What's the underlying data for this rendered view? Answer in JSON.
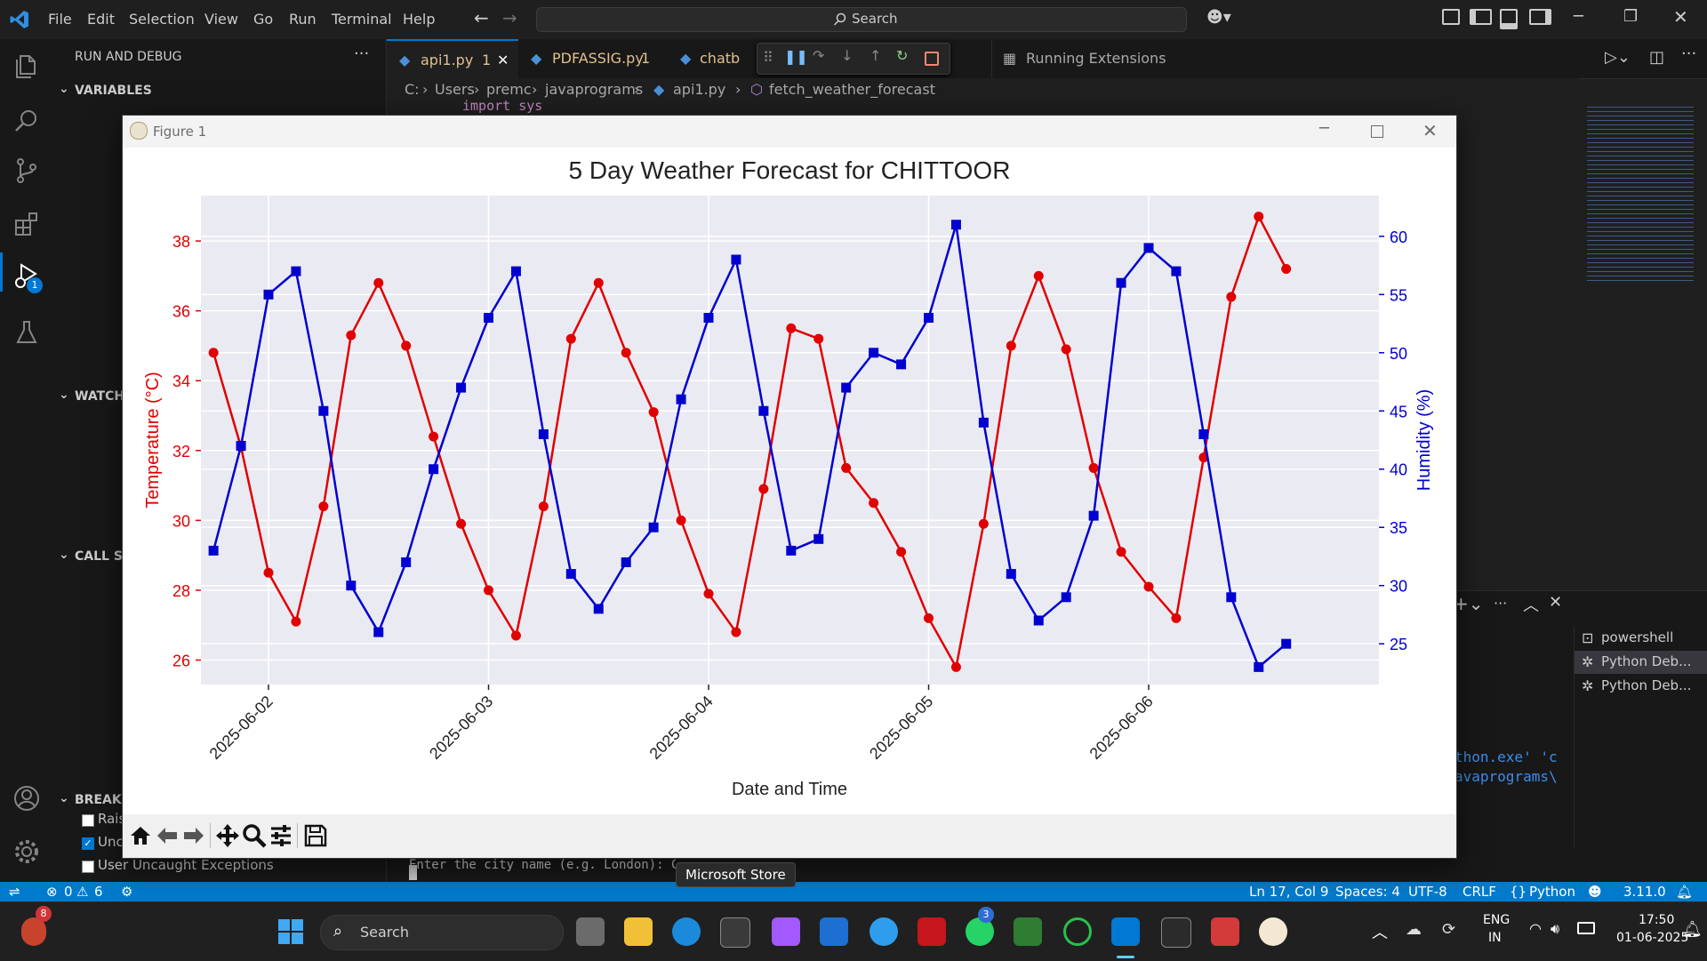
{
  "menu": [
    "File",
    "Edit",
    "Selection",
    "View",
    "Go",
    "Run",
    "Terminal",
    "Help"
  ],
  "search_label": "Search",
  "sidebar": {
    "title": "RUN AND DEBUG",
    "variables": "VARIABLES",
    "watch": "WATCH",
    "call_stack": "CALL ST",
    "breakpoints": "BREAKP",
    "bp_items": [
      "Rais",
      "Unc",
      "User Uncaught Exceptions"
    ]
  },
  "debug_badge": "1",
  "tabs": [
    {
      "label": "api1.py",
      "badge": "1"
    },
    {
      "label": "PDFASSIG.py",
      "badge": "1"
    },
    {
      "label": "chatb"
    },
    {
      "label": "Running Extensions"
    }
  ],
  "breadcrumb": [
    "C:",
    "Users",
    "premc",
    "javaprograms",
    "api1.py",
    "fetch_weather_forecast"
  ],
  "editor_code_line": "import sys",
  "terminal": {
    "line1": "thon.exe' 'c",
    "line2": "avaprograms\\",
    "prompt": "Enter the city name (e.g. London): CHITTOOR",
    "sessions": [
      "powershell",
      "Python Deb...",
      "Python Deb..."
    ]
  },
  "figure": {
    "window_title": "Figure 1"
  },
  "status": {
    "errors": "0",
    "warnings": "6",
    "position": "Ln 17, Col 9",
    "spaces": "Spaces: 4",
    "encoding": "UTF-8",
    "eol": "CRLF",
    "language": "Python",
    "version": "3.11.0"
  },
  "taskbar": {
    "search": "Search",
    "tooltip": "Microsoft Store",
    "lang1": "ENG",
    "lang2": "IN",
    "time": "17:50",
    "date": "01-06-2025",
    "notif_badge": "8",
    "whatsapp_badge": "3"
  },
  "chart_data": {
    "type": "line",
    "title": "5 Day Weather Forecast for CHITTOOR",
    "xlabel": "Date and Time",
    "ylabel": "Temperature (°C)",
    "ylabel_right": "Humidity (%)",
    "x_ticks": [
      "2025-06-02",
      "2025-06-03",
      "2025-06-04",
      "2025-06-05",
      "2025-06-06"
    ],
    "y_ticks": [
      26,
      28,
      30,
      32,
      34,
      36,
      38
    ],
    "y2_ticks": [
      25,
      30,
      35,
      40,
      45,
      50,
      55,
      60
    ],
    "ylim": [
      25.3,
      39.3
    ],
    "y2lim": [
      21.5,
      63.5
    ],
    "x_hour_range": [
      -9,
      42
    ],
    "x_hours": [
      -6,
      -3,
      0,
      3,
      6,
      9,
      12,
      15,
      18,
      21,
      24,
      27,
      30,
      33,
      36,
      39,
      42,
      45,
      48,
      51,
      54,
      57,
      60,
      63,
      66,
      69,
      72,
      75,
      78,
      81,
      84,
      87,
      90,
      93,
      96,
      99,
      102,
      105,
      108,
      111
    ],
    "series": [
      {
        "name": "Temperature (°C)",
        "color": "#e00000",
        "marker": "circle",
        "axis": "left",
        "values": [
          34.8,
          32.1,
          28.5,
          27.1,
          30.4,
          35.3,
          36.8,
          35.0,
          32.4,
          29.9,
          28.0,
          26.7,
          30.4,
          35.2,
          36.8,
          34.8,
          33.1,
          30.0,
          27.9,
          26.8,
          30.9,
          35.5,
          35.2,
          31.5,
          30.5,
          29.1,
          27.2,
          25.8,
          29.9,
          35.0,
          37.0,
          34.9,
          31.5,
          29.1,
          28.1,
          27.2,
          31.8,
          36.4,
          38.7,
          37.2
        ]
      },
      {
        "name": "Humidity (%)",
        "color": "#0000d0",
        "marker": "square",
        "axis": "right",
        "values": [
          33,
          42,
          55,
          57,
          45,
          30,
          26,
          32,
          40,
          47,
          53,
          57,
          43,
          31,
          28,
          32,
          35,
          46,
          53,
          58,
          45,
          33,
          34,
          47,
          50,
          49,
          53,
          61,
          44,
          31,
          27,
          29,
          36,
          56,
          59,
          57,
          43,
          29,
          23,
          25
        ]
      }
    ],
    "grid": true,
    "background": "#eaeaf2"
  }
}
